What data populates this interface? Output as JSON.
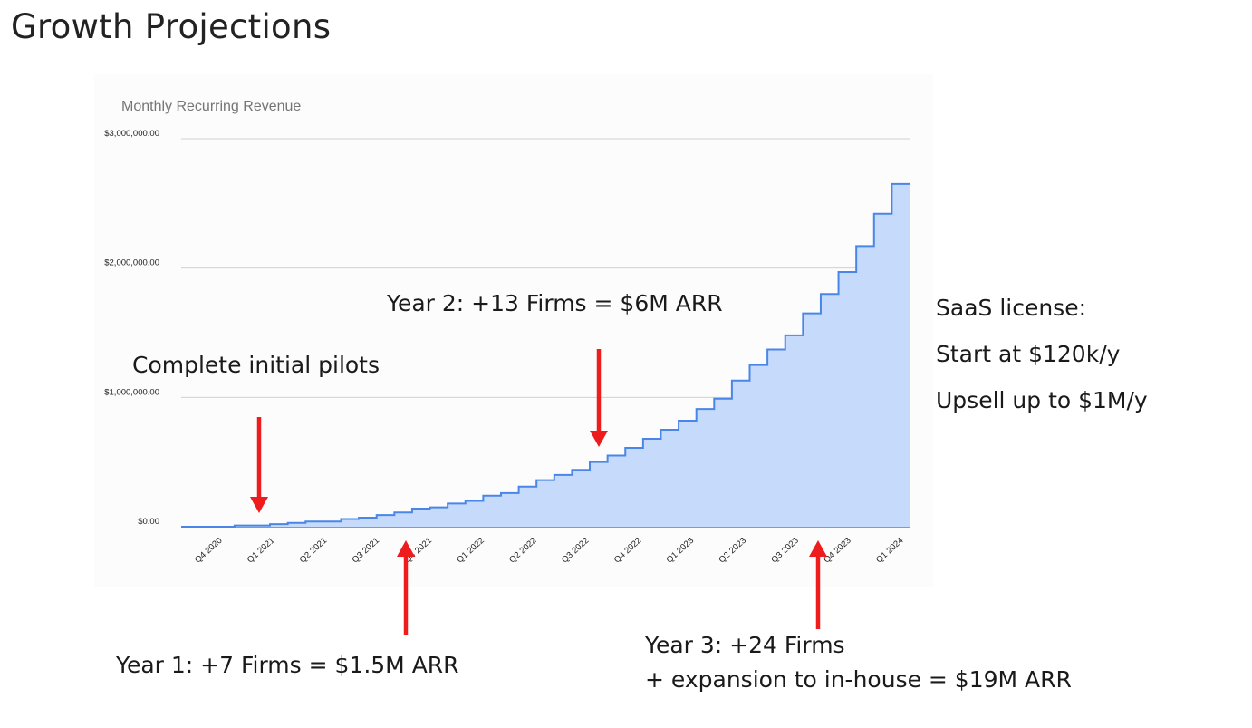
{
  "slide": {
    "title": "Growth Projections"
  },
  "chart_data": {
    "type": "area",
    "title": "Monthly Recurring Revenue",
    "xlabel": "",
    "ylabel": "",
    "ylim": [
      0,
      3000000
    ],
    "y_ticks": [
      "$0.00",
      "$1,000,000.00",
      "$2,000,000.00",
      "$3,000,000.00"
    ],
    "x_tick_labels": [
      "Q4 2020",
      "Q1 2021",
      "Q2 2021",
      "Q3 2021",
      "Q4 2021",
      "Q1 2022",
      "Q2 2022",
      "Q3 2022",
      "Q4 2022",
      "Q1 2023",
      "Q2 2023",
      "Q3 2023",
      "Q4 2023",
      "Q1 2024"
    ],
    "stepped": true,
    "grid": true,
    "legend": "none",
    "series_color": "#4a86e8",
    "fill_color": "#c6dbfb",
    "values": [
      0,
      0,
      0,
      10000,
      10000,
      20000,
      30000,
      40000,
      40000,
      60000,
      70000,
      90000,
      110000,
      140000,
      150000,
      180000,
      200000,
      240000,
      260000,
      310000,
      360000,
      400000,
      440000,
      500000,
      550000,
      610000,
      680000,
      750000,
      820000,
      910000,
      990000,
      1130000,
      1250000,
      1370000,
      1480000,
      1650000,
      1800000,
      1970000,
      2170000,
      2420000,
      2650000
    ]
  },
  "annotations": {
    "pilots": "Complete initial pilots",
    "year2": "Year 2: +13 Firms = $6M ARR",
    "year1": "Year 1: +7 Firms = $1.5M ARR",
    "year3_line1": "Year 3: +24 Firms",
    "year3_line2": "+ expansion to in-house = $19M ARR",
    "saas_line1": "SaaS license:",
    "saas_line2": "Start at $120k/y",
    "saas_line3": "Upsell up to $1M/y",
    "arrow_color": "#ee1c1c"
  }
}
